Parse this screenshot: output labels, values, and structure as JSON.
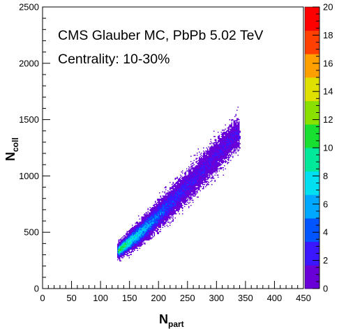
{
  "chart_data": {
    "type": "heatmap",
    "title": "",
    "annotations": [
      "CMS Glauber MC, PbPb 5.02 TeV",
      "Centrality: 10-30%"
    ],
    "xlabel": {
      "main": "N",
      "sub": "part"
    },
    "ylabel": {
      "main": "N",
      "sub": "coll"
    },
    "xlim": [
      0,
      450
    ],
    "ylim": [
      0,
      2500
    ],
    "x_ticks": [
      0,
      50,
      100,
      150,
      200,
      250,
      300,
      350,
      400,
      450
    ],
    "y_ticks": [
      0,
      500,
      1000,
      1500,
      2000,
      2500
    ],
    "z_range": [
      0,
      20
    ],
    "z_ticks": [
      0,
      2,
      4,
      6,
      8,
      10,
      12,
      14,
      16,
      18,
      20
    ],
    "colormap": [
      "#6a00d8",
      "#3a17ff",
      "#0055ff",
      "#00a8ff",
      "#00e0f0",
      "#00e89a",
      "#18e030",
      "#8ae000",
      "#e0e000",
      "#ffa000",
      "#ff4000",
      "#ff0000"
    ],
    "distribution": {
      "description_points": [
        {
          "npart": 130,
          "ncoll_mean": 330,
          "ncoll_spread": 45
        },
        {
          "npart": 170,
          "ncoll_mean": 500,
          "ncoll_spread": 80
        },
        {
          "npart": 210,
          "ncoll_mean": 700,
          "ncoll_spread": 95
        },
        {
          "npart": 250,
          "ncoll_mean": 910,
          "ncoll_spread": 110
        },
        {
          "npart": 290,
          "ncoll_mean": 1120,
          "ncoll_spread": 120
        },
        {
          "npart": 335,
          "ncoll_mean": 1370,
          "ncoll_spread": 110
        }
      ],
      "npart_range": [
        130,
        340
      ],
      "peak_npart": 168,
      "peak_ncoll": 500,
      "peak_counts": 12
    }
  }
}
